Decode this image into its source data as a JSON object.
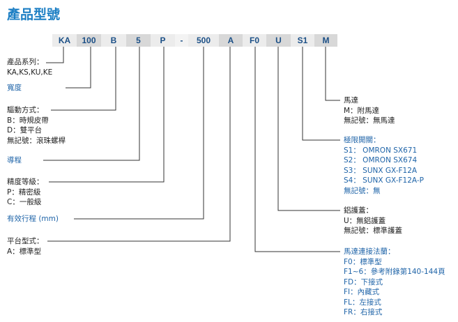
{
  "title": "產品型號",
  "code_segments": [
    "KA",
    "100",
    "B",
    "5",
    "P",
    "-",
    "500",
    "A",
    "F0",
    "U",
    "S1",
    "M"
  ],
  "left": {
    "series": {
      "label": "產品系列：",
      "value": "KA,KS,KU,KE"
    },
    "width": {
      "label": "寬度"
    },
    "drive": {
      "label": "驅動方式：",
      "items": [
        "B：時規皮帶",
        "D：雙平台",
        "無記號：滾珠螺桿"
      ]
    },
    "lead": {
      "label": "導程"
    },
    "accuracy": {
      "label": "精度等級：",
      "items": [
        "P：精密級",
        "C：一般級"
      ]
    },
    "stroke": {
      "label": "有效行程 (mm)"
    },
    "table": {
      "label": "平台型式：",
      "items": [
        "A：標準型"
      ]
    }
  },
  "right": {
    "motor": {
      "label": "馬達",
      "items": [
        "M：附馬達",
        "無記號：無馬達"
      ]
    },
    "limit": {
      "label": "極限開關：",
      "items": [
        "S1： OMRON SX671",
        "S2： OMRON SX674",
        "S3： SUNX GX-F12A",
        "S4： SUNX GX-F12A-P",
        "無記號：無"
      ]
    },
    "cover": {
      "label": "鋁護蓋：",
      "items": [
        "U：無鋁護蓋",
        "無記號：標準護蓋"
      ]
    },
    "flange": {
      "label": "馬達連接法蘭：",
      "items": [
        "F0：標準型",
        "F1~6：參考附錄第140-144頁",
        "FD：下接式",
        "FI：內藏式",
        "FL：左接式",
        "FR：右接式"
      ]
    }
  },
  "colors": {
    "title": "#1d7fc4",
    "code_text": "#1b4f86",
    "blue_label": "#1f64a8"
  }
}
